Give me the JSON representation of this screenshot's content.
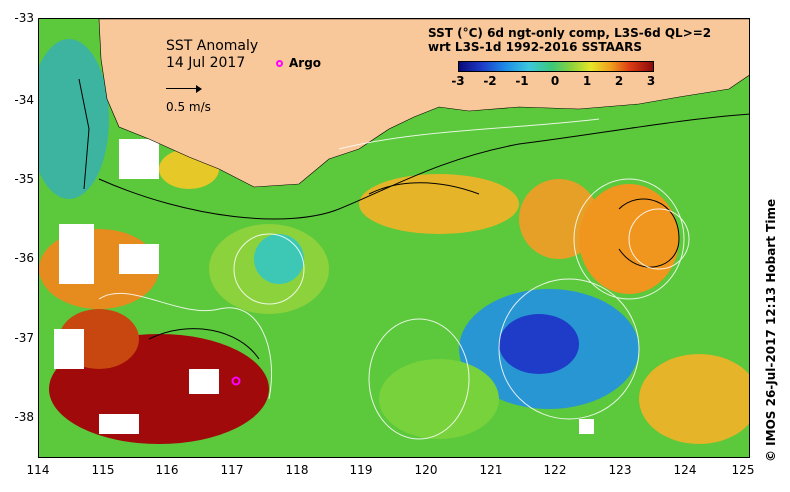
{
  "map": {
    "title": "SST Anomaly",
    "date": "14 Jul 2017",
    "argo_label": "Argo",
    "scale_label": "0.5 m/s",
    "caption_line1": "SST (°C) 6d ngt-only comp, L3S-6d QL>=2",
    "caption_line2": "wrt L3S-1d 1992-2016 SSTAARS",
    "colorbar_ticks": [
      "-3",
      "-2",
      "-1",
      "0",
      "1",
      "2",
      "3"
    ],
    "lat_ticks": [
      "-33",
      "-34",
      "-35",
      "-36",
      "-37",
      "-38"
    ],
    "lon_ticks": [
      "114",
      "115",
      "116",
      "117",
      "118",
      "119",
      "120",
      "121",
      "122",
      "123",
      "124",
      "125"
    ],
    "timestamp": "© IMOS 26-Jul-2017 12:13 Hobart Time",
    "colors": {
      "land": "#f8c89a",
      "argo": "#ff00ff",
      "hot": "#a00a0a",
      "cold": "#1e3cc8"
    }
  }
}
